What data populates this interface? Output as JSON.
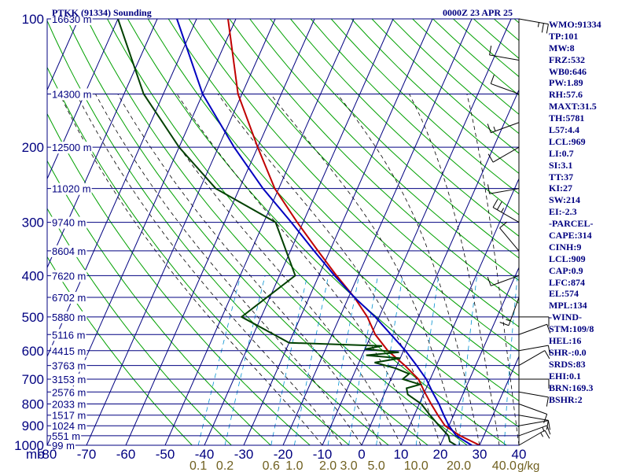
{
  "header": {
    "station_title": "PTKK (91334) Sounding",
    "time": "0000Z 23 APR 25"
  },
  "stats": [
    "WMO:91334",
    "TP:101",
    "MW:8",
    "FRZ:532",
    "WB0:646",
    "PW:1.89",
    "RH:57.6",
    "MAXT:31.5",
    "TH:5781",
    "L57:4.4",
    "LCL:969",
    "LI:0.7",
    "SI:3.1",
    "TT:37",
    "KI:27",
    "SW:214",
    "EI:-2.3",
    "-PARCEL-",
    "CAPE:314",
    "CINH:9",
    "LCL:909",
    "CAP:0.9",
    "LFC:874",
    "EL:574",
    "MPL:134",
    "-WIND-",
    "STM:109/8",
    "HEL:16",
    "SHR-:0.0",
    "SRDS:83",
    "EHI:0.1",
    "BRN:169.3",
    "BSHR:2"
  ],
  "colors": {
    "grid": "#000080",
    "dry_adiabat": "#00a000",
    "moist_adiabat": "#000000",
    "mixing_ratio": "#0090d0",
    "temperature": "#c00000",
    "dewpoint": "#004000",
    "parcel": "#0000c0",
    "mixing_label": "#706020",
    "wind_barb": "#000000"
  },
  "chart_data": {
    "type": "skew-t",
    "y_scale": "log",
    "ylim": [
      100,
      1000
    ],
    "xlim": [
      -80,
      40
    ],
    "x_axis_label": "mb",
    "pressure_ticks": [
      100,
      200,
      300,
      400,
      500,
      600,
      700,
      800,
      900,
      1000
    ],
    "temperature_ticks": [
      -80,
      -70,
      -60,
      -50,
      -40,
      -30,
      -20,
      -10,
      0,
      10,
      20,
      30,
      40
    ],
    "mixing_ratio_ticks": [
      "0.1",
      "0.2",
      "0.6",
      "1.0",
      "2.0",
      "3.0",
      "5.0",
      "10.0",
      "20.0",
      "40.0"
    ],
    "mixing_ratio_unit": "g/kg",
    "heights": [
      {
        "p": 100,
        "label": "16630 m"
      },
      {
        "p": 150,
        "label": "14300 m"
      },
      {
        "p": 200,
        "label": "12500 m"
      },
      {
        "p": 250,
        "label": "11020 m"
      },
      {
        "p": 300,
        "label": "9740 m"
      },
      {
        "p": 350,
        "label": "8604 m"
      },
      {
        "p": 400,
        "label": "7620 m"
      },
      {
        "p": 450,
        "label": "6702 m"
      },
      {
        "p": 500,
        "label": "5880 m"
      },
      {
        "p": 550,
        "label": "5116 m"
      },
      {
        "p": 600,
        "label": "4415 m"
      },
      {
        "p": 650,
        "label": "3763 m"
      },
      {
        "p": 700,
        "label": "3153 m"
      },
      {
        "p": 750,
        "label": "2576 m"
      },
      {
        "p": 800,
        "label": "2033 m"
      },
      {
        "p": 850,
        "label": "1517 m"
      },
      {
        "p": 900,
        "label": "1024 m"
      },
      {
        "p": 950,
        "label": "551 m"
      },
      {
        "p": 1000,
        "label": "99 m"
      }
    ],
    "series": [
      {
        "name": "temperature",
        "points": [
          {
            "p": 1000,
            "t": 30.0
          },
          {
            "p": 950,
            "t": 24.0
          },
          {
            "p": 900,
            "t": 19.0
          },
          {
            "p": 850,
            "t": 16.0
          },
          {
            "p": 800,
            "t": 13.0
          },
          {
            "p": 750,
            "t": 10.0
          },
          {
            "p": 700,
            "t": 7.0
          },
          {
            "p": 650,
            "t": 2.0
          },
          {
            "p": 600,
            "t": -4.0
          },
          {
            "p": 550,
            "t": -9.0
          },
          {
            "p": 500,
            "t": -13.0
          },
          {
            "p": 450,
            "t": -18.5
          },
          {
            "p": 400,
            "t": -25.5
          },
          {
            "p": 350,
            "t": -33.0
          },
          {
            "p": 300,
            "t": -41.5
          },
          {
            "p": 250,
            "t": -51.0
          },
          {
            "p": 200,
            "t": -60.0
          },
          {
            "p": 150,
            "t": -71.0
          },
          {
            "p": 100,
            "t": -82.0
          }
        ]
      },
      {
        "name": "dewpoint",
        "points": [
          {
            "p": 1000,
            "t": 24.0
          },
          {
            "p": 980,
            "t": 22.0
          },
          {
            "p": 950,
            "t": 21.0
          },
          {
            "p": 900,
            "t": 17.5
          },
          {
            "p": 850,
            "t": 14.0
          },
          {
            "p": 800,
            "t": 10.5
          },
          {
            "p": 760,
            "t": 6.0
          },
          {
            "p": 735,
            "t": 5.0
          },
          {
            "p": 720,
            "t": 8.0
          },
          {
            "p": 700,
            "t": 3.0
          },
          {
            "p": 680,
            "t": 4.0
          },
          {
            "p": 660,
            "t": 0.0
          },
          {
            "p": 640,
            "t": -6.0
          },
          {
            "p": 625,
            "t": 0.0
          },
          {
            "p": 615,
            "t": -9.0
          },
          {
            "p": 605,
            "t": -1.0
          },
          {
            "p": 595,
            "t": -10.0
          },
          {
            "p": 585,
            "t": -6.0
          },
          {
            "p": 575,
            "t": -30.0
          },
          {
            "p": 500,
            "t": -45.0
          },
          {
            "p": 400,
            "t": -36.0
          },
          {
            "p": 300,
            "t": -47.0
          },
          {
            "p": 250,
            "t": -66.0
          },
          {
            "p": 200,
            "t": -80.0
          },
          {
            "p": 150,
            "t": -95.0
          },
          {
            "p": 100,
            "t": -110.0
          }
        ]
      },
      {
        "name": "parcel",
        "points": [
          {
            "p": 1000,
            "t": 28.0
          },
          {
            "p": 950,
            "t": 23.0
          },
          {
            "p": 900,
            "t": 20.0
          },
          {
            "p": 850,
            "t": 17.5
          },
          {
            "p": 800,
            "t": 15.0
          },
          {
            "p": 750,
            "t": 12.0
          },
          {
            "p": 700,
            "t": 9.0
          },
          {
            "p": 650,
            "t": 5.0
          },
          {
            "p": 600,
            "t": 0.5
          },
          {
            "p": 550,
            "t": -5.0
          },
          {
            "p": 500,
            "t": -11.0
          },
          {
            "p": 450,
            "t": -18.5
          },
          {
            "p": 400,
            "t": -26.0
          },
          {
            "p": 350,
            "t": -34.0
          },
          {
            "p": 300,
            "t": -43.0
          },
          {
            "p": 250,
            "t": -54.0
          },
          {
            "p": 200,
            "t": -66.0
          },
          {
            "p": 150,
            "t": -80.0
          },
          {
            "p": 100,
            "t": -95.0
          }
        ]
      }
    ],
    "winds": [
      {
        "p": 100,
        "dir": 100,
        "spd": 15
      },
      {
        "p": 125,
        "dir": 280,
        "spd": 10
      },
      {
        "p": 150,
        "dir": 290,
        "spd": 10
      },
      {
        "p": 175,
        "dir": 250,
        "spd": 5
      },
      {
        "p": 200,
        "dir": 240,
        "spd": 10
      },
      {
        "p": 250,
        "dir": 260,
        "spd": 10
      },
      {
        "p": 300,
        "dir": 300,
        "spd": 15
      },
      {
        "p": 350,
        "dir": 320,
        "spd": 10
      },
      {
        "p": 400,
        "dir": 250,
        "spd": 10
      },
      {
        "p": 450,
        "dir": 200,
        "spd": 5
      },
      {
        "p": 500,
        "dir": 90,
        "spd": 10
      },
      {
        "p": 550,
        "dir": 70,
        "spd": 10
      },
      {
        "p": 600,
        "dir": 80,
        "spd": 10
      },
      {
        "p": 650,
        "dir": 60,
        "spd": 10
      },
      {
        "p": 700,
        "dir": 90,
        "spd": 10
      },
      {
        "p": 750,
        "dir": 100,
        "spd": 10
      },
      {
        "p": 800,
        "dir": 110,
        "spd": 10
      },
      {
        "p": 850,
        "dir": 100,
        "spd": 10
      },
      {
        "p": 900,
        "dir": 80,
        "spd": 10
      },
      {
        "p": 950,
        "dir": 70,
        "spd": 5
      },
      {
        "p": 1000,
        "dir": 60,
        "spd": 5
      }
    ]
  }
}
